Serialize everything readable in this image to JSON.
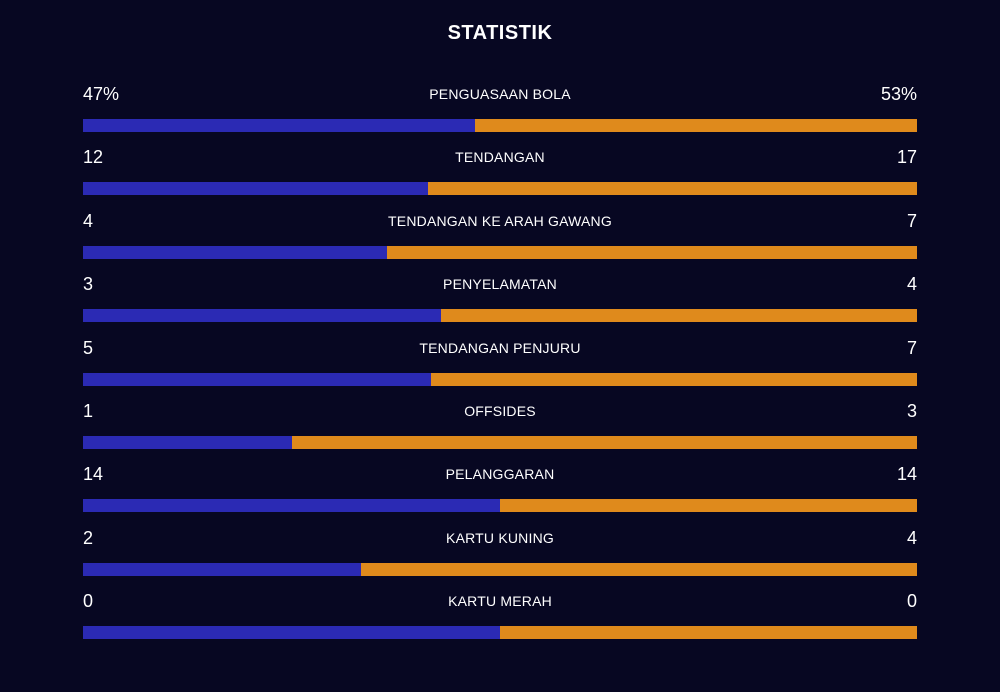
{
  "title": "STATISTIK",
  "colors": {
    "background": "#070722",
    "home": "#2b2ab4",
    "away": "#df8a1c"
  },
  "stats": [
    {
      "label": "PENGUASAAN BOLA",
      "home": "47%",
      "away": "53%",
      "home_share": 0.47
    },
    {
      "label": "TENDANGAN",
      "home": "12",
      "away": "17",
      "home_share": 0.414
    },
    {
      "label": "TENDANGAN KE ARAH GAWANG",
      "home": "4",
      "away": "7",
      "home_share": 0.364
    },
    {
      "label": "PENYELAMATAN",
      "home": "3",
      "away": "4",
      "home_share": 0.429
    },
    {
      "label": "TENDANGAN PENJURU",
      "home": "5",
      "away": "7",
      "home_share": 0.417
    },
    {
      "label": "OFFSIDES",
      "home": "1",
      "away": "3",
      "home_share": 0.25
    },
    {
      "label": "PELANGGARAN",
      "home": "14",
      "away": "14",
      "home_share": 0.5
    },
    {
      "label": "KARTU KUNING",
      "home": "2",
      "away": "4",
      "home_share": 0.333
    },
    {
      "label": "KARTU MERAH",
      "home": "0",
      "away": "0",
      "home_share": 0.5
    }
  ]
}
